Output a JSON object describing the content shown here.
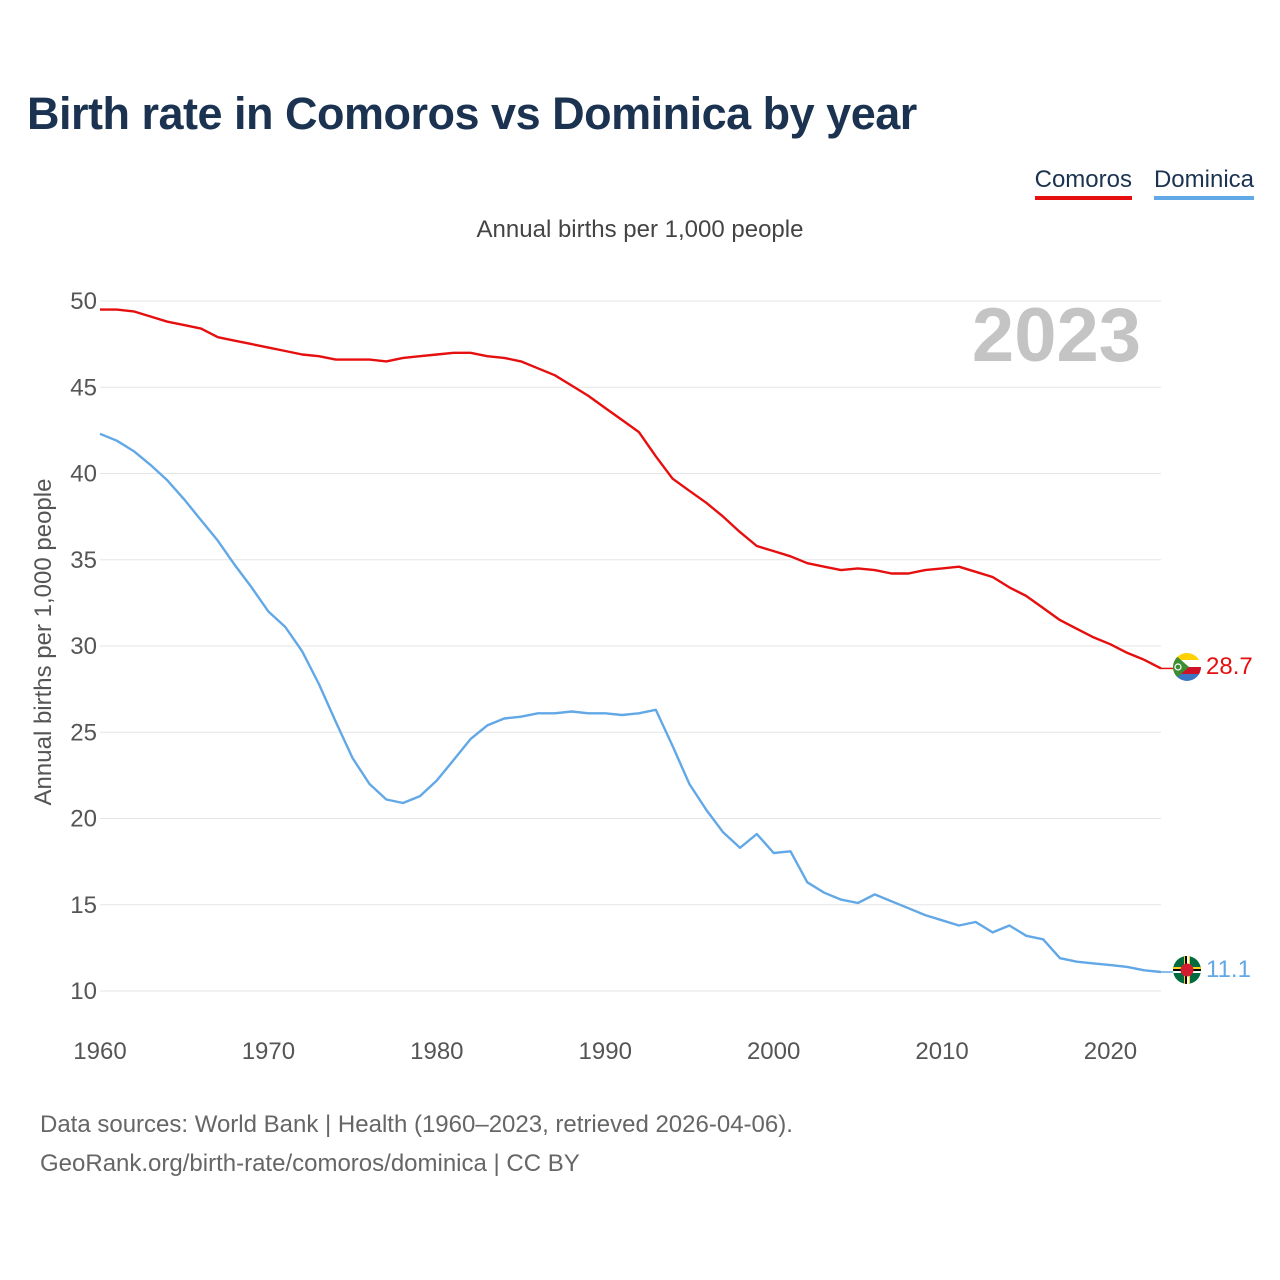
{
  "title": "Birth rate in Comoros vs Dominica by year",
  "legend": [
    {
      "name": "Comoros",
      "color": "#e60f0f"
    },
    {
      "name": "Dominica",
      "color": "#62a8e6"
    }
  ],
  "subtitle": "Annual births per 1,000 people",
  "year_watermark": "2023",
  "footer": {
    "line1": "Data sources: World Bank | Health (1960–2023, retrieved 2026-04-06).",
    "line2": "GeoRank.org/birth-rate/comoros/dominica | CC BY"
  },
  "chart_data": {
    "type": "line",
    "title": "Birth rate in Comoros vs Dominica by year",
    "ylabel": "Annual births per 1,000 people",
    "xlabel": "",
    "xlim": [
      1960,
      2023
    ],
    "ylim": [
      10,
      50
    ],
    "grid": true,
    "x_ticks": [
      "1960",
      "1970",
      "1980",
      "1990",
      "2000",
      "2010",
      "2020"
    ],
    "y_ticks": [
      "10",
      "15",
      "20",
      "25",
      "30",
      "35",
      "40",
      "45",
      "50"
    ],
    "x": [
      1960,
      1961,
      1962,
      1963,
      1964,
      1965,
      1966,
      1967,
      1968,
      1969,
      1970,
      1971,
      1972,
      1973,
      1974,
      1975,
      1976,
      1977,
      1978,
      1979,
      1980,
      1981,
      1982,
      1983,
      1984,
      1985,
      1986,
      1987,
      1988,
      1989,
      1990,
      1991,
      1992,
      1993,
      1994,
      1995,
      1996,
      1997,
      1998,
      1999,
      2000,
      2001,
      2002,
      2003,
      2004,
      2005,
      2006,
      2007,
      2008,
      2009,
      2010,
      2011,
      2012,
      2013,
      2014,
      2015,
      2016,
      2017,
      2018,
      2019,
      2020,
      2021,
      2022,
      2023
    ],
    "series": [
      {
        "name": "Comoros",
        "color": "#e60f0f",
        "end_label": "28.7",
        "values": [
          49.5,
          49.5,
          49.4,
          49.1,
          48.8,
          48.6,
          48.4,
          47.9,
          47.7,
          47.5,
          47.3,
          47.1,
          46.9,
          46.8,
          46.6,
          46.6,
          46.6,
          46.5,
          46.7,
          46.8,
          46.9,
          47.0,
          47.0,
          46.8,
          46.7,
          46.5,
          46.1,
          45.7,
          45.1,
          44.5,
          43.8,
          43.1,
          42.4,
          41.0,
          39.7,
          39.0,
          38.3,
          37.5,
          36.6,
          35.8,
          35.5,
          35.2,
          34.8,
          34.6,
          34.4,
          34.5,
          34.4,
          34.2,
          34.2,
          34.4,
          34.5,
          34.6,
          34.3,
          34.0,
          33.4,
          32.9,
          32.2,
          31.5,
          31.0,
          30.5,
          30.1,
          29.6,
          29.2,
          28.7
        ]
      },
      {
        "name": "Dominica",
        "color": "#62a8e6",
        "end_label": "11.1",
        "values": [
          42.3,
          41.9,
          41.3,
          40.5,
          39.6,
          38.5,
          37.3,
          36.1,
          34.7,
          33.4,
          32.0,
          31.1,
          29.7,
          27.8,
          25.6,
          23.5,
          22.0,
          21.1,
          20.9,
          21.3,
          22.2,
          23.4,
          24.6,
          25.4,
          25.8,
          25.9,
          26.1,
          26.1,
          26.2,
          26.1,
          26.1,
          26.0,
          26.1,
          26.3,
          24.2,
          22.0,
          20.5,
          19.2,
          18.3,
          19.1,
          18.0,
          18.1,
          16.3,
          15.7,
          15.3,
          15.1,
          15.6,
          15.2,
          14.8,
          14.4,
          14.1,
          13.8,
          14.0,
          13.4,
          13.8,
          13.2,
          13.0,
          11.9,
          11.7,
          11.6,
          11.5,
          11.4,
          11.2,
          11.1
        ]
      }
    ]
  }
}
